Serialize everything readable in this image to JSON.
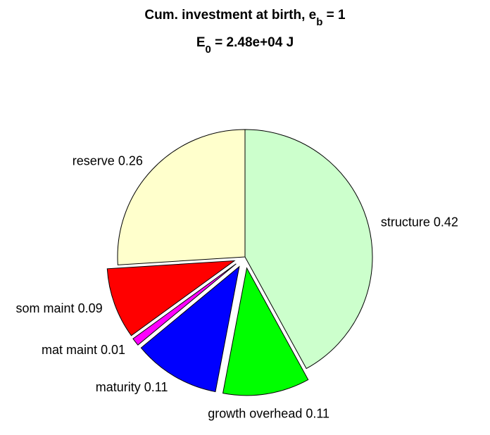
{
  "chart_data": {
    "type": "pie",
    "title": [
      "Cum. investment at birth, e",
      "b",
      " = 1"
    ],
    "subtitle": [
      "E",
      "0",
      " = 2.48e+04 J"
    ],
    "categories": [
      "structure",
      "growth overhead",
      "maturity",
      "mat maint",
      "som maint",
      "reserve"
    ],
    "values": [
      0.42,
      0.11,
      0.11,
      0.01,
      0.09,
      0.26
    ],
    "colors": [
      "#ccffcc",
      "#00ff00",
      "#0000ff",
      "#ff00ff",
      "#ff0000",
      "#ffffcc"
    ],
    "explode": [
      false,
      true,
      true,
      true,
      true,
      false
    ]
  }
}
